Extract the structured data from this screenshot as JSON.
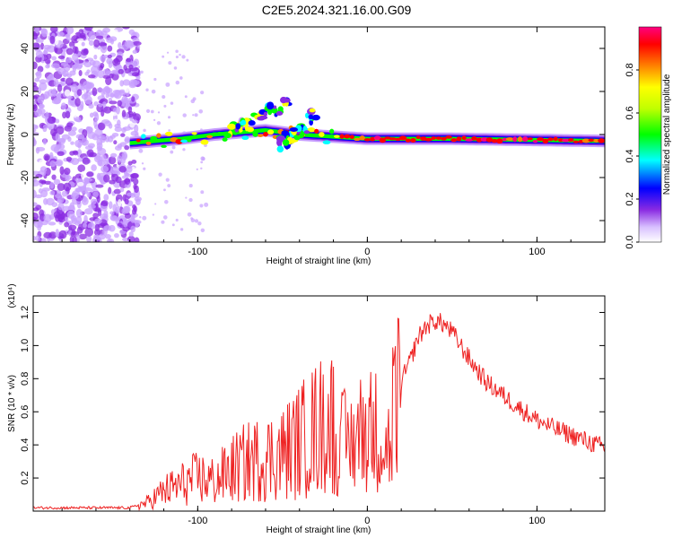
{
  "title": "C2E5.2024.321.16.00.G09",
  "chart_data": [
    {
      "type": "heatmap",
      "xlabel": "Height of straight line (km)",
      "ylabel": "Frequency (Hz)",
      "xlim": [
        -197,
        140
      ],
      "ylim": [
        -50,
        50
      ],
      "xticks": [
        "-100",
        "0",
        "100"
      ],
      "yticks": [
        "-40",
        "-20",
        "0",
        "20",
        "40"
      ],
      "ridge": [
        {
          "x": -140,
          "y": -4
        },
        {
          "x": -110,
          "y": -2
        },
        {
          "x": -90,
          "y": 0
        },
        {
          "x": -60,
          "y": 2
        },
        {
          "x": -40,
          "y": 0
        },
        {
          "x": -20,
          "y": -1
        },
        {
          "x": 0,
          "y": -2
        },
        {
          "x": 50,
          "y": -2
        },
        {
          "x": 140,
          "y": -3
        }
      ],
      "branches": [
        {
          "from": {
            "x": -80,
            "y": 2
          },
          "to": {
            "x": -45,
            "y": 15
          }
        },
        {
          "from": {
            "x": -50,
            "y": -5
          },
          "to": {
            "x": -30,
            "y": 10
          }
        }
      ],
      "noise_region": {
        "x": [
          -197,
          -135
        ],
        "y": [
          -50,
          50
        ]
      },
      "colorbar": {
        "label": "Normalized spectral amplitude",
        "range": [
          0,
          1
        ],
        "ticks": [
          "0.0",
          "0.2",
          "0.4",
          "0.6",
          "0.8"
        ],
        "colors": [
          "#ffffff",
          "#c8a0ff",
          "#8a2be2",
          "#0000ff",
          "#00ffff",
          "#00ff00",
          "#ffff00",
          "#ff8000",
          "#ff0000",
          "#ff0080"
        ]
      }
    },
    {
      "type": "line",
      "xlabel": "Height of straight line (km)",
      "ylabel": "SNR (10 * v/v)",
      "yscale_label": "(x10⁴)",
      "xlim": [
        -197,
        140
      ],
      "ylim": [
        0,
        1.3
      ],
      "xticks": [
        "-100",
        "0",
        "100"
      ],
      "yticks": [
        "0.2",
        "0.4",
        "0.6",
        "0.8",
        "1.0",
        "1.2"
      ],
      "series": [
        {
          "color": "#ee2222",
          "x": [
            -197,
            -180,
            -160,
            -140,
            -130,
            -120,
            -110,
            -100,
            -90,
            -80,
            -70,
            -60,
            -50,
            -40,
            -30,
            -20,
            -15,
            -10,
            -5,
            0,
            5,
            10,
            15,
            20,
            25,
            30,
            35,
            40,
            45,
            50,
            55,
            60,
            70,
            80,
            90,
            100,
            110,
            120,
            130,
            140
          ],
          "y": [
            0.02,
            0.02,
            0.02,
            0.02,
            0.05,
            0.12,
            0.16,
            0.2,
            0.18,
            0.25,
            0.3,
            0.32,
            0.35,
            0.42,
            0.5,
            0.55,
            0.6,
            0.58,
            0.68,
            0.72,
            0.7,
            0.6,
            0.55,
            0.78,
            0.9,
            1.05,
            1.12,
            1.15,
            1.13,
            1.08,
            1.0,
            0.92,
            0.78,
            0.7,
            0.62,
            0.55,
            0.5,
            0.46,
            0.42,
            0.38
          ]
        }
      ]
    }
  ]
}
